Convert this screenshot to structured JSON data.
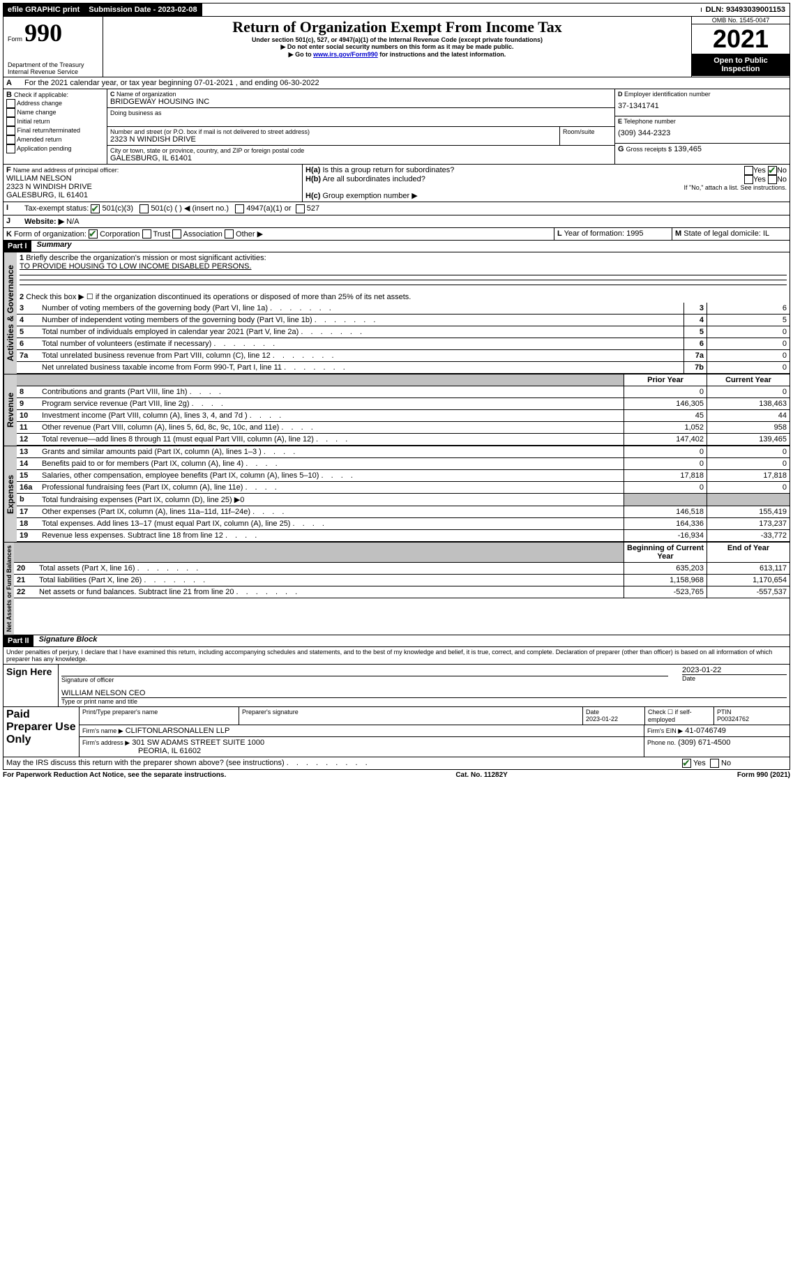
{
  "topbar": {
    "efile": "efile GRAPHIC print",
    "submission_label": "Submission Date - 2023-02-08",
    "dln_label": "DLN: 93493039001153"
  },
  "header": {
    "form_label": "Form",
    "form_number": "990",
    "dept": "Department of the Treasury Internal Revenue Service",
    "title": "Return of Organization Exempt From Income Tax",
    "subtitle": "Under section 501(c), 527, or 4947(a)(1) of the Internal Revenue Code (except private foundations)",
    "note1": "▶ Do not enter social security numbers on this form as it may be made public.",
    "note2_pre": "▶ Go to ",
    "note2_link": "www.irs.gov/Form990",
    "note2_post": " for instructions and the latest information.",
    "omb": "OMB No. 1545-0047",
    "year": "2021",
    "open": "Open to Public Inspection"
  },
  "A": {
    "text": "For the 2021 calendar year, or tax year beginning 07-01-2021 , and ending 06-30-2022"
  },
  "B": {
    "label": "Check if applicable:",
    "items": [
      "Address change",
      "Name change",
      "Initial return",
      "Final return/terminated",
      "Amended return",
      "Application pending"
    ]
  },
  "C": {
    "name_label": "Name of organization",
    "name": "BRIDGEWAY HOUSING INC",
    "dba_label": "Doing business as",
    "street_label": "Number and street (or P.O. box if mail is not delivered to street address)",
    "room_label": "Room/suite",
    "street": "2323 N WINDISH DRIVE",
    "city_label": "City or town, state or province, country, and ZIP or foreign postal code",
    "city": "GALESBURG, IL  61401"
  },
  "D": {
    "label": "Employer identification number",
    "val": "37-1341741"
  },
  "E": {
    "label": "Telephone number",
    "val": "(309) 344-2323"
  },
  "G": {
    "label": "Gross receipts $",
    "val": "139,465"
  },
  "F": {
    "label": "Name and address of principal officer:",
    "l1": "WILLIAM NELSON",
    "l2": "2323 N WINDISH DRIVE",
    "l3": "GALESBURG, IL  61401"
  },
  "H": {
    "a": "Is this a group return for subordinates?",
    "b": "Are all subordinates included?",
    "ifno": "If \"No,\" attach a list. See instructions.",
    "c": "Group exemption number ▶",
    "yes": "Yes",
    "no": "No"
  },
  "I": {
    "label": "Tax-exempt status:",
    "c3": "501(c)(3)",
    "c": "501(c) (  ) ◀ (insert no.)",
    "a1": "4947(a)(1) or",
    "s527": "527"
  },
  "J": {
    "label": "Website: ▶",
    "val": "N/A"
  },
  "K": {
    "label": "Form of organization:",
    "corp": "Corporation",
    "trust": "Trust",
    "assoc": "Association",
    "other": "Other ▶"
  },
  "L": {
    "label": "Year of formation: 1995"
  },
  "M": {
    "label": "State of legal domicile: IL"
  },
  "part1": {
    "header": "Part I",
    "title": "Summary",
    "q1": "Briefly describe the organization's mission or most significant activities:",
    "mission": "TO PROVIDE HOUSING TO LOW INCOME DISABLED PERSONS.",
    "q2": "Check this box ▶ ☐ if the organization discontinued its operations or disposed of more than 25% of its net assets.",
    "rows_gov": [
      {
        "n": "3",
        "t": "Number of voting members of the governing body (Part VI, line 1a)",
        "k": "3",
        "v": "6"
      },
      {
        "n": "4",
        "t": "Number of independent voting members of the governing body (Part VI, line 1b)",
        "k": "4",
        "v": "5"
      },
      {
        "n": "5",
        "t": "Total number of individuals employed in calendar year 2021 (Part V, line 2a)",
        "k": "5",
        "v": "0"
      },
      {
        "n": "6",
        "t": "Total number of volunteers (estimate if necessary)",
        "k": "6",
        "v": "0"
      },
      {
        "n": "7a",
        "t": "Total unrelated business revenue from Part VIII, column (C), line 12",
        "k": "7a",
        "v": "0"
      },
      {
        "n": "",
        "t": "Net unrelated business taxable income from Form 990-T, Part I, line 11",
        "k": "7b",
        "v": "0"
      }
    ],
    "col_prior": "Prior Year",
    "col_current": "Current Year",
    "revenue": [
      {
        "n": "8",
        "t": "Contributions and grants (Part VIII, line 1h)",
        "p": "0",
        "c": "0"
      },
      {
        "n": "9",
        "t": "Program service revenue (Part VIII, line 2g)",
        "p": "146,305",
        "c": "138,463"
      },
      {
        "n": "10",
        "t": "Investment income (Part VIII, column (A), lines 3, 4, and 7d )",
        "p": "45",
        "c": "44"
      },
      {
        "n": "11",
        "t": "Other revenue (Part VIII, column (A), lines 5, 6d, 8c, 9c, 10c, and 11e)",
        "p": "1,052",
        "c": "958"
      },
      {
        "n": "12",
        "t": "Total revenue—add lines 8 through 11 (must equal Part VIII, column (A), line 12)",
        "p": "147,402",
        "c": "139,465"
      }
    ],
    "expenses": [
      {
        "n": "13",
        "t": "Grants and similar amounts paid (Part IX, column (A), lines 1–3 )",
        "p": "0",
        "c": "0"
      },
      {
        "n": "14",
        "t": "Benefits paid to or for members (Part IX, column (A), line 4)",
        "p": "0",
        "c": "0"
      },
      {
        "n": "15",
        "t": "Salaries, other compensation, employee benefits (Part IX, column (A), lines 5–10)",
        "p": "17,818",
        "c": "17,818"
      },
      {
        "n": "16a",
        "t": "Professional fundraising fees (Part IX, column (A), line 11e)",
        "p": "0",
        "c": "0"
      },
      {
        "n": "b",
        "t": "Total fundraising expenses (Part IX, column (D), line 25) ▶0",
        "p": "",
        "c": "",
        "grey": true
      },
      {
        "n": "17",
        "t": "Other expenses (Part IX, column (A), lines 11a–11d, 11f–24e)",
        "p": "146,518",
        "c": "155,419"
      },
      {
        "n": "18",
        "t": "Total expenses. Add lines 13–17 (must equal Part IX, column (A), line 25)",
        "p": "164,336",
        "c": "173,237"
      },
      {
        "n": "19",
        "t": "Revenue less expenses. Subtract line 18 from line 12",
        "p": "-16,934",
        "c": "-33,772"
      }
    ],
    "col_begin": "Beginning of Current Year",
    "col_end": "End of Year",
    "netassets": [
      {
        "n": "20",
        "t": "Total assets (Part X, line 16)",
        "p": "635,203",
        "c": "613,117"
      },
      {
        "n": "21",
        "t": "Total liabilities (Part X, line 26)",
        "p": "1,158,968",
        "c": "1,170,654"
      },
      {
        "n": "22",
        "t": "Net assets or fund balances. Subtract line 21 from line 20",
        "p": "-523,765",
        "c": "-557,537"
      }
    ]
  },
  "vlabels": {
    "gov": "Activities & Governance",
    "rev": "Revenue",
    "exp": "Expenses",
    "net": "Net Assets or Fund Balances"
  },
  "part2": {
    "header": "Part II",
    "title": "Signature Block",
    "perjury": "Under penalties of perjury, I declare that I have examined this return, including accompanying schedules and statements, and to the best of my knowledge and belief, it is true, correct, and complete. Declaration of preparer (other than officer) is based on all information of which preparer has any knowledge.",
    "sign_here": "Sign Here",
    "sig_of": "Signature of officer",
    "date": "Date",
    "sig_date": "2023-01-22",
    "officer": "WILLIAM NELSON CEO",
    "officer_sub": "Type or print name and title",
    "paid": "Paid Preparer Use Only",
    "h1": "Print/Type preparer's name",
    "h2": "Preparer's signature",
    "h3": "Date",
    "h4": "Check ☐ if self-employed",
    "h5": "PTIN",
    "prep_date": "2023-01-22",
    "ptin": "P00324762",
    "firm_name_l": "Firm's name   ▶",
    "firm_name": "CLIFTONLARSONALLEN LLP",
    "firm_ein_l": "Firm's EIN ▶",
    "firm_ein": "41-0746749",
    "firm_addr_l": "Firm's address ▶",
    "firm_addr1": "301 SW ADAMS STREET SUITE 1000",
    "firm_addr2": "PEORIA, IL  61602",
    "phone_l": "Phone no.",
    "phone": "(309) 671-4500",
    "discuss": "May the IRS discuss this return with the preparer shown above? (see instructions)"
  },
  "footer": {
    "pra": "For Paperwork Reduction Act Notice, see the separate instructions.",
    "cat": "Cat. No. 11282Y",
    "form": "Form 990 (2021)"
  }
}
